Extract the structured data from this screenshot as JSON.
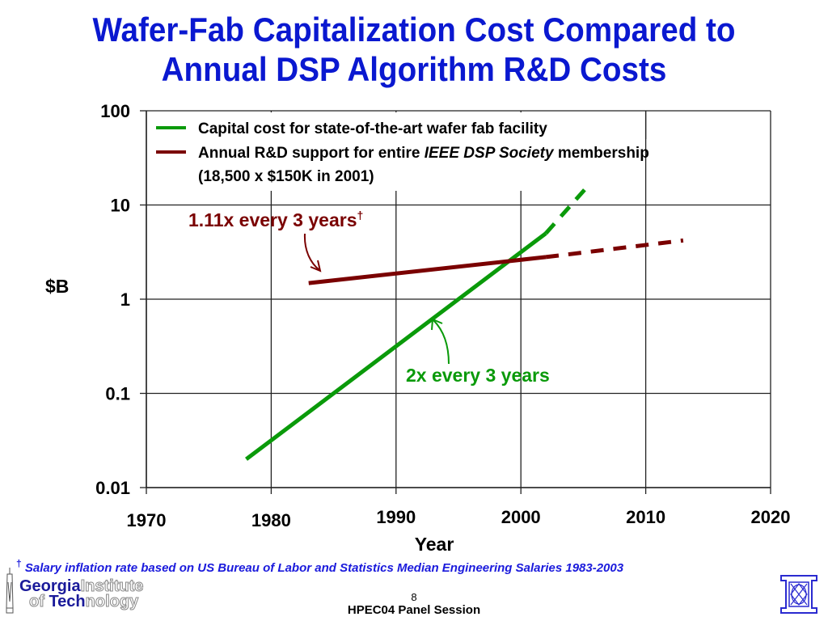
{
  "slide": {
    "title_line1": "Wafer-Fab Capitalization Cost Compared to",
    "title_line2": "Annual DSP Algorithm R&D Costs",
    "footnote_marker": "†",
    "footnote_text": "Salary inflation rate based on US Bureau of Labor and Statistics Median Engineering Salaries 1983-2003",
    "page_number": "8",
    "session": "HPEC04 Panel Session",
    "logo_left": {
      "part1_bold": "Georgia",
      "part1_light": "Institute",
      "part2_light_a": "of ",
      "part2_bold": "Tech",
      "part2_light_b": "nology",
      "icon": "georgia-tech-spire-icon"
    },
    "logo_right": {
      "icon": "lincoln-lab-logo-icon"
    }
  },
  "chart_data": {
    "type": "line",
    "title": "Wafer-Fab Capitalization Cost Compared to Annual DSP Algorithm R&D Costs",
    "xlabel": "Year",
    "ylabel": "$B",
    "xlim": [
      1970,
      2020
    ],
    "ylim": [
      0.01,
      100
    ],
    "yscale": "log",
    "grid": true,
    "x_ticks": [
      1970,
      1980,
      1990,
      2000,
      2010,
      2020
    ],
    "x_tick_labels": [
      "1970",
      "1980",
      "1990",
      "2000",
      "2010",
      "2020"
    ],
    "y_ticks": [
      100,
      10,
      1,
      0.1,
      0.01
    ],
    "y_tick_labels": [
      "100",
      "10",
      "1",
      "0.1",
      "0.01"
    ],
    "legend_position": "top-left",
    "series": [
      {
        "name": "Capital cost for state-of-the-art wafer fab facility",
        "color": "#0a9a0a",
        "solid": {
          "x": [
            1978,
            2002
          ],
          "y": [
            0.02,
            5.0
          ]
        },
        "projected_dashed": {
          "x": [
            2002,
            2005.2
          ],
          "y": [
            5.0,
            15
          ]
        }
      },
      {
        "name": "Annual R&D support for entire IEEE DSP Society membership (18,500 x $150K in 2001)",
        "legend_line1_pre": "Annual R&D support for entire ",
        "legend_line1_italic": "IEEE DSP Society",
        "legend_line1_post": " membership",
        "legend_line2": "(18,500 x $150K in 2001)",
        "color": "#7a0000",
        "solid": {
          "x": [
            1983,
            2002
          ],
          "y": [
            1.48,
            2.8
          ]
        },
        "projected_dashed": {
          "x": [
            2002,
            2013
          ],
          "y": [
            2.8,
            4.2
          ]
        }
      }
    ],
    "annotations": [
      {
        "text": "1.11x every 3 years",
        "superscript": "†",
        "color": "#7a0000",
        "points_to_series": 1
      },
      {
        "text": "2x every 3 years",
        "color": "#0a9a0a",
        "points_to_series": 0
      }
    ]
  }
}
